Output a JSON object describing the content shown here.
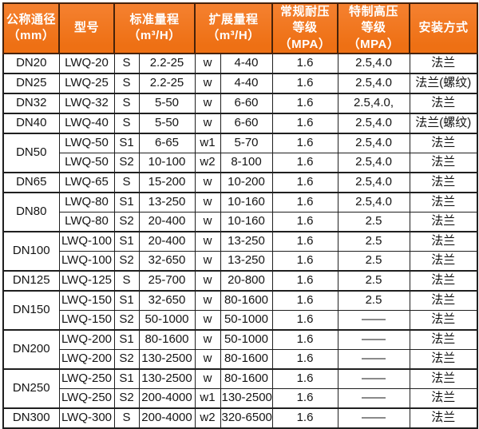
{
  "colors": {
    "header_bg": "#EE7014",
    "header_bg_light": "#F58130",
    "header_text": "#FFFFFF",
    "header_border": "#46220A",
    "border_dark": "#1F1F1F",
    "body_text": "#141414"
  },
  "table": {
    "headers": {
      "nominal_diameter": "公称通径\n（mm）",
      "model": "型号",
      "standard_range": "标准量程\n（m³/H）",
      "extended_range": "扩展量程\n（m³/H）",
      "normal_pressure": "常规耐压\n等级（MPA）",
      "high_pressure": "特制高压\n等级（MPA）",
      "installation": "安装方式"
    },
    "rows": [
      {
        "dn": "DN20",
        "dn_rowspan": 1,
        "model": "LWQ-20",
        "std_code": "S",
        "std_range": "2.2-25",
        "ext_code": "w",
        "ext_range": "4-40",
        "normal_pressure": "1.6",
        "high_pressure": "2.5,4.0",
        "installation": "法兰"
      },
      {
        "dn": "DN25",
        "dn_rowspan": 1,
        "model": "LWQ-25",
        "std_code": "S",
        "std_range": "2.2-25",
        "ext_code": "w",
        "ext_range": "4-40",
        "normal_pressure": "1.6",
        "high_pressure": "2.5,4.0",
        "installation": "法兰(螺纹)"
      },
      {
        "dn": "DN32",
        "dn_rowspan": 1,
        "model": "LWQ-32",
        "std_code": "S",
        "std_range": "5-50",
        "ext_code": "w",
        "ext_range": "6-60",
        "normal_pressure": "1.6",
        "high_pressure": "2.5,4.0,",
        "installation": "法兰"
      },
      {
        "dn": "DN40",
        "dn_rowspan": 1,
        "model": "LWQ-40",
        "std_code": "S",
        "std_range": "5-50",
        "ext_code": "w",
        "ext_range": "6-60",
        "normal_pressure": "1.6",
        "high_pressure": "2.5,4.0",
        "installation": "法兰(螺纹)"
      },
      {
        "dn": "DN50",
        "dn_rowspan": 2,
        "model": "LWQ-50",
        "std_code": "S1",
        "std_range": "6-65",
        "ext_code": "w1",
        "ext_range": "5-70",
        "normal_pressure": "1.6",
        "high_pressure": "2.5,4.0",
        "installation": "法兰"
      },
      {
        "model": "LWQ-50",
        "std_code": "S2",
        "std_range": "10-100",
        "ext_code": "w2",
        "ext_range": "8-100",
        "normal_pressure": "1.6",
        "high_pressure": "2.5,4.0",
        "installation": "法兰"
      },
      {
        "dn": "DN65",
        "dn_rowspan": 1,
        "model": "LWQ-65",
        "std_code": "S",
        "std_range": "15-200",
        "ext_code": "w",
        "ext_range": "10-200",
        "normal_pressure": "1.6",
        "high_pressure": "2.5,4.0",
        "installation": "法兰"
      },
      {
        "dn": "DN80",
        "dn_rowspan": 2,
        "model": "LWQ-80",
        "std_code": "S1",
        "std_range": "13-250",
        "ext_code": "w",
        "ext_range": "10-160",
        "normal_pressure": "1.6",
        "high_pressure": "2.5,4.0",
        "installation": "法兰"
      },
      {
        "model": "LWQ-80",
        "std_code": "S2",
        "std_range": "20-400",
        "ext_code": "w",
        "ext_range": "10-160",
        "normal_pressure": "1.6",
        "high_pressure": "2.5",
        "installation": "法兰"
      },
      {
        "dn": "DN100",
        "dn_rowspan": 2,
        "model": "LWQ-100",
        "std_code": "S1",
        "std_range": "20-400",
        "ext_code": "w",
        "ext_range": "13-250",
        "normal_pressure": "1.6",
        "high_pressure": "2.5",
        "installation": "法兰"
      },
      {
        "model": "LWQ-100",
        "std_code": "S2",
        "std_range": "32-650",
        "ext_code": "w",
        "ext_range": "13-250",
        "normal_pressure": "1.6",
        "high_pressure": "2.5",
        "installation": "法兰"
      },
      {
        "dn": "DN125",
        "dn_rowspan": 1,
        "model": "LWQ-125",
        "std_code": "S",
        "std_range": "25-700",
        "ext_code": "w",
        "ext_range": "20-800",
        "normal_pressure": "1.6",
        "high_pressure": "2.5",
        "installation": "法兰"
      },
      {
        "dn": "DN150",
        "dn_rowspan": 2,
        "model": "LWQ-150",
        "std_code": "S1",
        "std_range": "32-650",
        "ext_code": "w",
        "ext_range": "80-1600",
        "normal_pressure": "1.6",
        "high_pressure": "2.5",
        "installation": "法兰"
      },
      {
        "model": "LWQ-150",
        "std_code": "S2",
        "std_range": "50-1000",
        "ext_code": "w",
        "ext_range": "50-1000",
        "normal_pressure": "1.6",
        "high_pressure": "——",
        "installation": "法兰"
      },
      {
        "dn": "DN200",
        "dn_rowspan": 2,
        "model": "LWQ-200",
        "std_code": "S1",
        "std_range": "80-1600",
        "ext_code": "w",
        "ext_range": "50-1000",
        "normal_pressure": "1.6",
        "high_pressure": "——",
        "installation": "法兰"
      },
      {
        "model": "LWQ-200",
        "std_code": "S2",
        "std_range": "130-2500",
        "ext_code": "w",
        "ext_range": "80-1600",
        "normal_pressure": "1.6",
        "high_pressure": "——",
        "installation": "法兰"
      },
      {
        "dn": "DN250",
        "dn_rowspan": 2,
        "model": "LWQ-250",
        "std_code": "S1",
        "std_range": "130-2500",
        "ext_code": "w",
        "ext_range": "80-1600",
        "normal_pressure": "1.6",
        "high_pressure": "——",
        "installation": "法兰"
      },
      {
        "model": "LWQ-250",
        "std_code": "S2",
        "std_range": "200-4000",
        "ext_code": "w1",
        "ext_range": "130-2500",
        "normal_pressure": "1.6",
        "high_pressure": "——",
        "installation": "法兰"
      },
      {
        "dn": "DN300",
        "dn_rowspan": 1,
        "model": "LWQ-300",
        "std_code": "S",
        "std_range": "200-4000",
        "ext_code": "w2",
        "ext_range": "320-6500",
        "normal_pressure": "1.6",
        "high_pressure": "——",
        "installation": "法兰"
      }
    ]
  }
}
